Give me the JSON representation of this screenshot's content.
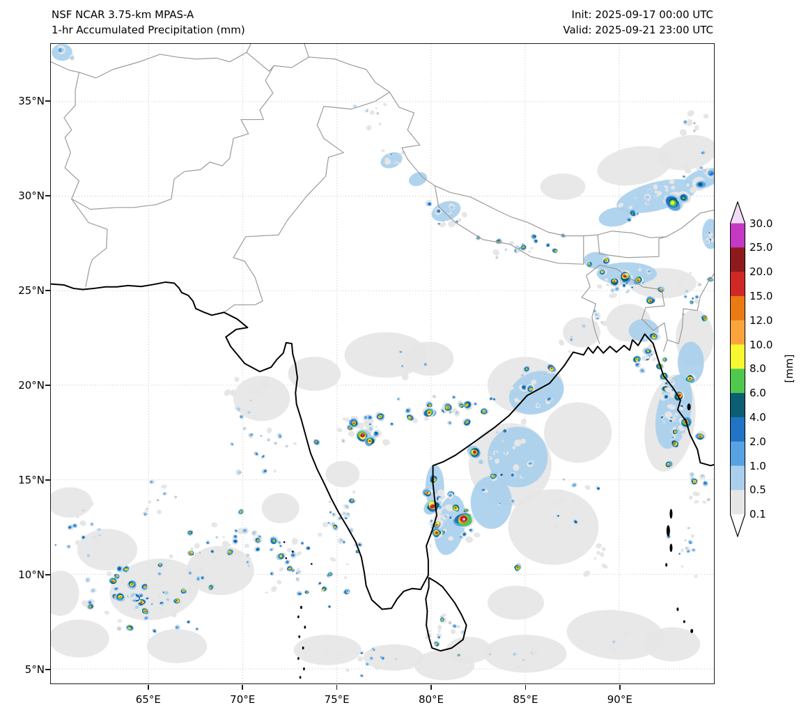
{
  "header": {
    "model": "NSF NCAR 3.75-km MPAS-A",
    "product": "1-hr Accumulated Precipitation (mm)",
    "init": "Init: 2025-09-17 00:00 UTC",
    "valid": "Valid: 2025-09-21 23:00 UTC"
  },
  "axes": {
    "y_tick_labels": [
      "35°N",
      "30°N",
      "25°N",
      "20°N",
      "15°N",
      "10°N",
      "5°N"
    ],
    "x_tick_labels": [
      "65°E",
      "70°E",
      "75°E",
      "80°E",
      "85°E",
      "90°E"
    ]
  },
  "colorbar": {
    "unit": "[mm]",
    "boundary_labels_top_to_bottom": [
      "30.0",
      "25.0",
      "20.0",
      "15.0",
      "12.0",
      "10.0",
      "8.0",
      "6.0",
      "4.0",
      "2.0",
      "1.0",
      "0.5",
      "0.1"
    ],
    "segment_colors_low_to_high": [
      "#e6e6e6",
      "#a9cfec",
      "#57a2e3",
      "#2173c6",
      "#0b5e73",
      "#4ec94e",
      "#f8f830",
      "#fba43b",
      "#ea7a12",
      "#d02824",
      "#8e1a1c",
      "#c438c4"
    ],
    "over_color": "#f2dcf5",
    "under_color": "#ffffff",
    "grid_color": "#bfbfbf",
    "coast_color": "#000000",
    "border_color": "#9a9a9a"
  }
}
